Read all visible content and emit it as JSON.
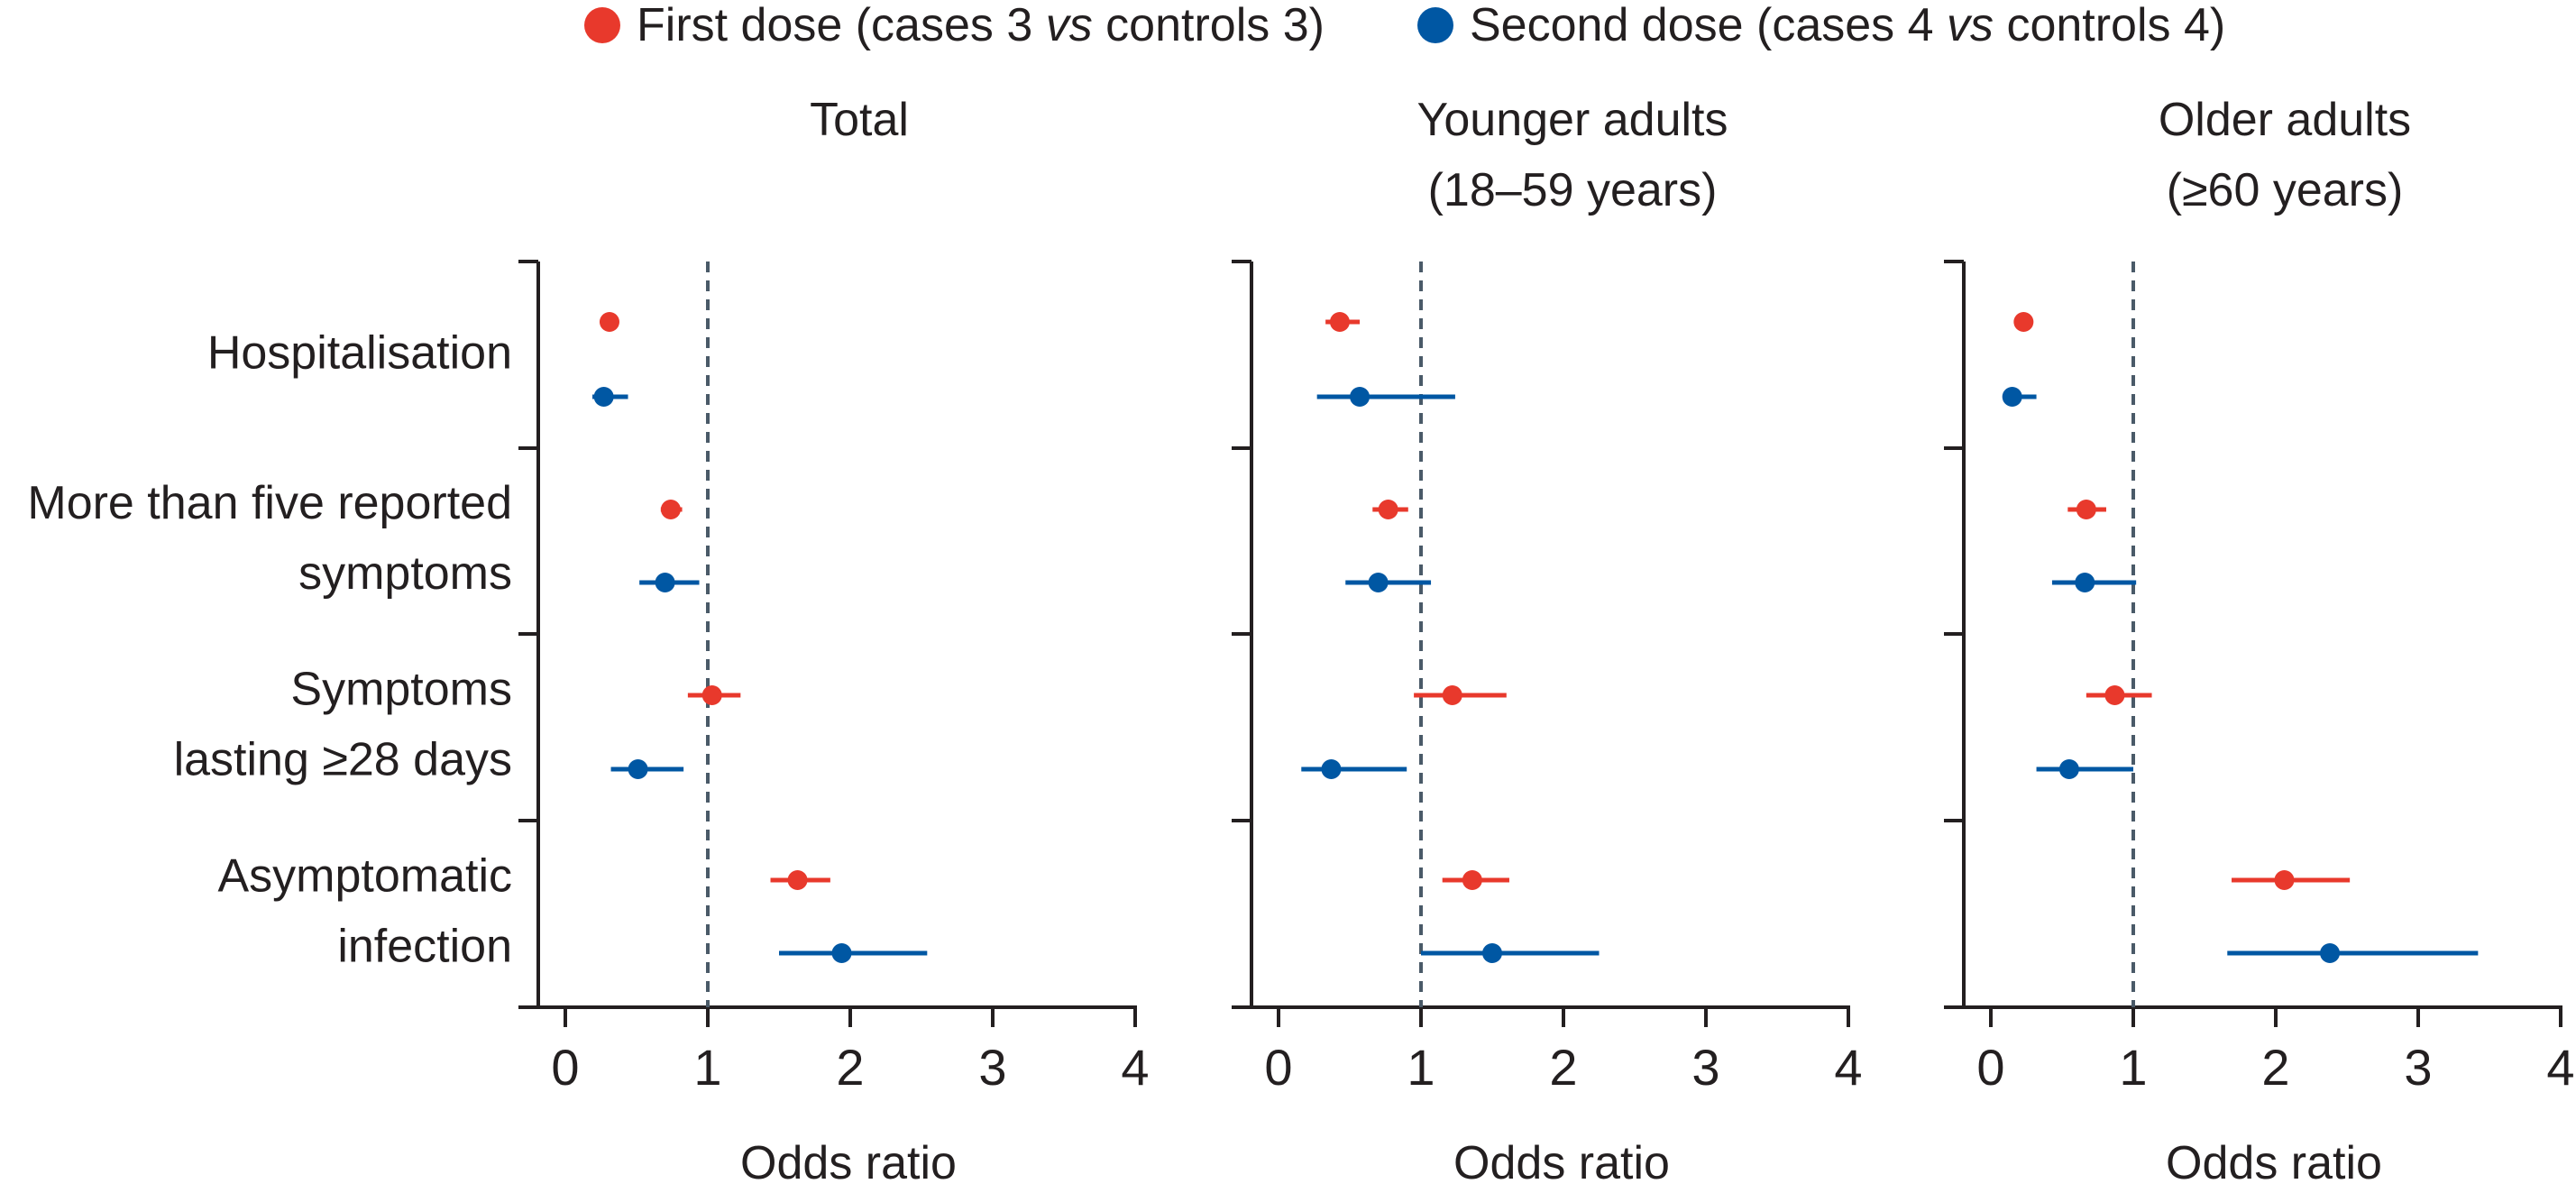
{
  "legend": [
    {
      "label_pre": "First dose (cases 3 ",
      "label_ital": "vs",
      "label_post": " controls 3)",
      "color": "#e8392c"
    },
    {
      "label_pre": "Second dose (cases 4 ",
      "label_ital": "vs",
      "label_post": " controls 4)",
      "color": "#0057a3"
    }
  ],
  "row_labels": [
    [
      "Hospitalisation"
    ],
    [
      "More than five reported",
      "symptoms"
    ],
    [
      "Symptoms",
      "lasting ≥28 days"
    ],
    [
      "Asymptomatic",
      "infection"
    ]
  ],
  "colors": {
    "first_dose": "#e8392c",
    "second_dose": "#0057a3",
    "axis": "#231f20",
    "reference_line": "#4a5a68"
  },
  "chart_data": [
    {
      "type": "forest",
      "title": [
        "Total"
      ],
      "xlabel": "Odds ratio",
      "xlim": [
        0,
        4
      ],
      "xticks": [
        0,
        1,
        2,
        3,
        4
      ],
      "reference_line": 1,
      "series": [
        {
          "name": "First dose (cases 3 vs controls 3)",
          "points": [
            {
              "category": "Hospitalisation",
              "value": 0.31,
              "low": 0.31,
              "high": 0.31
            },
            {
              "category": "More than five reported symptoms",
              "value": 0.74,
              "low": 0.67,
              "high": 0.82
            },
            {
              "category": "Symptoms lasting ≥28 days",
              "value": 1.03,
              "low": 0.86,
              "high": 1.23
            },
            {
              "category": "Asymptomatic infection",
              "value": 1.63,
              "low": 1.44,
              "high": 1.86
            }
          ]
        },
        {
          "name": "Second dose (cases 4 vs controls 4)",
          "points": [
            {
              "category": "Hospitalisation",
              "value": 0.27,
              "low": 0.19,
              "high": 0.44
            },
            {
              "category": "More than five reported symptoms",
              "value": 0.7,
              "low": 0.52,
              "high": 0.94
            },
            {
              "category": "Symptoms lasting ≥28 days",
              "value": 0.51,
              "low": 0.32,
              "high": 0.83
            },
            {
              "category": "Asymptomatic infection",
              "value": 1.94,
              "low": 1.5,
              "high": 2.54
            }
          ]
        }
      ]
    },
    {
      "type": "forest",
      "title": [
        "Younger adults",
        "(18–59 years)"
      ],
      "xlabel": "Odds ratio",
      "xlim": [
        0,
        4
      ],
      "xticks": [
        0,
        1,
        2,
        3,
        4
      ],
      "reference_line": 1,
      "series": [
        {
          "name": "First dose (cases 3 vs controls 3)",
          "points": [
            {
              "category": "Hospitalisation",
              "value": 0.43,
              "low": 0.33,
              "high": 0.57
            },
            {
              "category": "More than five reported symptoms",
              "value": 0.77,
              "low": 0.66,
              "high": 0.91
            },
            {
              "category": "Symptoms lasting ≥28 days",
              "value": 1.22,
              "low": 0.95,
              "high": 1.6
            },
            {
              "category": "Asymptomatic infection",
              "value": 1.36,
              "low": 1.15,
              "high": 1.62
            }
          ]
        },
        {
          "name": "Second dose (cases 4 vs controls 4)",
          "points": [
            {
              "category": "Hospitalisation",
              "value": 0.57,
              "low": 0.27,
              "high": 1.24
            },
            {
              "category": "More than five reported symptoms",
              "value": 0.7,
              "low": 0.47,
              "high": 1.07
            },
            {
              "category": "Symptoms lasting ≥28 days",
              "value": 0.37,
              "low": 0.16,
              "high": 0.9
            },
            {
              "category": "Asymptomatic infection",
              "value": 1.5,
              "low": 1.0,
              "high": 2.25
            }
          ]
        }
      ]
    },
    {
      "type": "forest",
      "title": [
        "Older adults",
        "(≥60 years)"
      ],
      "xlabel": "Odds ratio",
      "xlim": [
        0,
        4
      ],
      "xticks": [
        0,
        1,
        2,
        3,
        4
      ],
      "reference_line": 1,
      "series": [
        {
          "name": "First dose (cases 3 vs controls 3)",
          "points": [
            {
              "category": "Hospitalisation",
              "value": 0.23,
              "low": 0.23,
              "high": 0.23
            },
            {
              "category": "More than five reported symptoms",
              "value": 0.67,
              "low": 0.54,
              "high": 0.81
            },
            {
              "category": "Symptoms lasting ≥28 days",
              "value": 0.87,
              "low": 0.67,
              "high": 1.13
            },
            {
              "category": "Asymptomatic infection",
              "value": 2.06,
              "low": 1.69,
              "high": 2.52
            }
          ]
        },
        {
          "name": "Second dose (cases 4 vs controls 4)",
          "points": [
            {
              "category": "Hospitalisation",
              "value": 0.15,
              "low": 0.1,
              "high": 0.32
            },
            {
              "category": "More than five reported symptoms",
              "value": 0.66,
              "low": 0.43,
              "high": 1.02
            },
            {
              "category": "Symptoms lasting ≥28 days",
              "value": 0.55,
              "low": 0.32,
              "high": 1.0
            },
            {
              "category": "Asymptomatic infection",
              "value": 2.38,
              "low": 1.66,
              "high": 3.42
            }
          ]
        }
      ]
    }
  ]
}
